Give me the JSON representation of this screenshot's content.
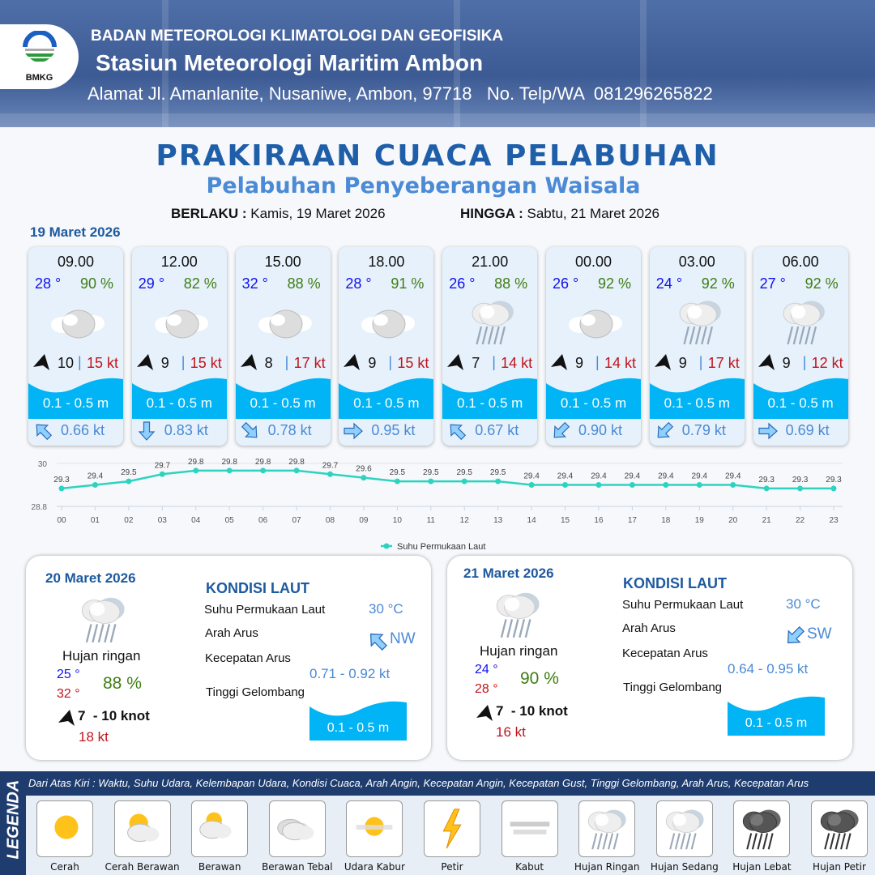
{
  "header": {
    "org": "BADAN METEOROLOGI KLIMATOLOGI DAN GEOFISIKA",
    "station": "Stasiun Meteorologi Maritim Ambon",
    "address": "Alamat Jl. Amanlanite, Nusaniwe, Ambon, 97718   No. Telp/WA  081296265822",
    "logo_text": "BMKG"
  },
  "title": "PRAKIRAAN CUACA PELABUHAN",
  "subtitle": "Pelabuhan Penyeberangan Waisala",
  "validity": {
    "from_label": "BERLAKU :",
    "from": "Kamis, 19 Maret 2026",
    "to_label": "HINGGA :",
    "to": "Sabtu, 21 Maret 2026"
  },
  "day1_date": "19 Maret 2026",
  "cards": [
    {
      "time": "09.00",
      "temp": "28 °",
      "hum": "90 %",
      "weather": "berawan-tebal",
      "wind": "10",
      "gust": "15 kt",
      "wave": "0.1 - 0.5 m",
      "current_dir": "NW",
      "current": "0.66 kt"
    },
    {
      "time": "12.00",
      "temp": "29 °",
      "hum": "82 %",
      "weather": "berawan-tebal",
      "wind": "9",
      "gust": "15 kt",
      "wave": "0.1 - 0.5 m",
      "current_dir": "S",
      "current": "0.83 kt"
    },
    {
      "time": "15.00",
      "temp": "32 °",
      "hum": "88 %",
      "weather": "berawan-tebal",
      "wind": "8",
      "gust": "17 kt",
      "wave": "0.1 - 0.5 m",
      "current_dir": "SE",
      "current": "0.78 kt"
    },
    {
      "time": "18.00",
      "temp": "28 °",
      "hum": "91 %",
      "weather": "berawan-tebal",
      "wind": "9",
      "gust": "15 kt",
      "wave": "0.1 - 0.5 m",
      "current_dir": "E",
      "current": "0.95 kt"
    },
    {
      "time": "21.00",
      "temp": "26 °",
      "hum": "88 %",
      "weather": "hujan-ringan",
      "wind": "7",
      "gust": "14 kt",
      "wave": "0.1 - 0.5 m",
      "current_dir": "NW",
      "current": "0.67 kt"
    },
    {
      "time": "00.00",
      "temp": "26 °",
      "hum": "92 %",
      "weather": "berawan-tebal",
      "wind": "9",
      "gust": "14 kt",
      "wave": "0.1 - 0.5 m",
      "current_dir": "SW",
      "current": "0.90 kt"
    },
    {
      "time": "03.00",
      "temp": "24 °",
      "hum": "92 %",
      "weather": "hujan-ringan",
      "wind": "9",
      "gust": "17 kt",
      "wave": "0.1 - 0.5 m",
      "current_dir": "SW",
      "current": "0.79 kt"
    },
    {
      "time": "06.00",
      "temp": "27 °",
      "hum": "92 %",
      "weather": "hujan-ringan",
      "wind": "9",
      "gust": "12 kt",
      "wave": "0.1 - 0.5 m",
      "current_dir": "E",
      "current": "0.69 kt"
    }
  ],
  "chart_data": {
    "type": "line",
    "categories": [
      "00",
      "01",
      "02",
      "03",
      "04",
      "05",
      "06",
      "07",
      "08",
      "09",
      "10",
      "11",
      "12",
      "13",
      "14",
      "15",
      "16",
      "17",
      "18",
      "19",
      "20",
      "21",
      "22",
      "23"
    ],
    "series": [
      {
        "name": "Suhu Permukaan Laut",
        "values": [
          29.3,
          29.4,
          29.5,
          29.7,
          29.8,
          29.8,
          29.8,
          29.8,
          29.7,
          29.6,
          29.5,
          29.5,
          29.5,
          29.5,
          29.4,
          29.4,
          29.4,
          29.4,
          29.4,
          29.4,
          29.4,
          29.3,
          29.3,
          29.3
        ],
        "color": "#2ed3c0"
      }
    ],
    "yticks": [
      "30",
      "28.8"
    ],
    "ylim": [
      28.8,
      30
    ],
    "legend": "bottom",
    "grid": true
  },
  "panels": [
    {
      "date": "20 Maret 2026",
      "weather": "Hujan ringan",
      "tmin": "25 °",
      "tmax": "32 °",
      "hum": "88 %",
      "wind": "7  - 10 knot",
      "gust": "18 kt",
      "kondisi": "KONDISI LAUT",
      "sst_label": "Suhu Permukaan Laut",
      "sst": "30 °C",
      "dir_label": "Arah Arus",
      "dir": "NW",
      "speed_label": "Kecepatan Arus",
      "speed": "0.71 - 0.92 kt",
      "wave_label": "Tinggi Gelombang",
      "wave": "0.1 - 0.5 m"
    },
    {
      "date": "21 Maret 2026",
      "weather": "Hujan ringan",
      "tmin": "24 °",
      "tmax": "28 °",
      "hum": "90 %",
      "wind": "7  - 10 knot",
      "gust": "16 kt",
      "kondisi": "KONDISI LAUT",
      "sst_label": "Suhu Permukaan Laut",
      "sst": "30 °C",
      "dir_label": "Arah Arus",
      "dir": "SW",
      "speed_label": "Kecepatan Arus",
      "speed": "0.64 - 0.95 kt",
      "wave_label": "Tinggi Gelombang",
      "wave": "0.1 - 0.5 m"
    }
  ],
  "legend": {
    "title": "LEGENDA",
    "description": "Dari Atas Kiri : Waktu, Suhu Udara, Kelembapan Udara, Kondisi Cuaca, Arah Angin, Kecepatan Angin, Kecepatan Gust, Tinggi Gelombang, Arah Arus, Kecepatan Arus",
    "items": [
      {
        "label": "Cerah",
        "icon": "cerah"
      },
      {
        "label": "Cerah Berawan",
        "icon": "cerah-berawan"
      },
      {
        "label": "Berawan",
        "icon": "berawan"
      },
      {
        "label": "Berawan Tebal",
        "icon": "berawan-tebal"
      },
      {
        "label": "Udara Kabur",
        "icon": "udara-kabur"
      },
      {
        "label": "Petir",
        "icon": "petir"
      },
      {
        "label": "Kabut",
        "icon": "kabut"
      },
      {
        "label": "Hujan Ringan",
        "icon": "hujan-ringan"
      },
      {
        "label": "Hujan Sedang",
        "icon": "hujan-sedang"
      },
      {
        "label": "Hujan Lebat",
        "icon": "hujan-lebat"
      },
      {
        "label": "Hujan Petir",
        "icon": "hujan-petir"
      }
    ]
  },
  "colors": {
    "title": "#1f5fa9",
    "wave": "#00b4f5",
    "temp": "#1010ee",
    "hum": "#3f7d13",
    "gust": "#c0141c",
    "current": "#4a8ad6"
  }
}
